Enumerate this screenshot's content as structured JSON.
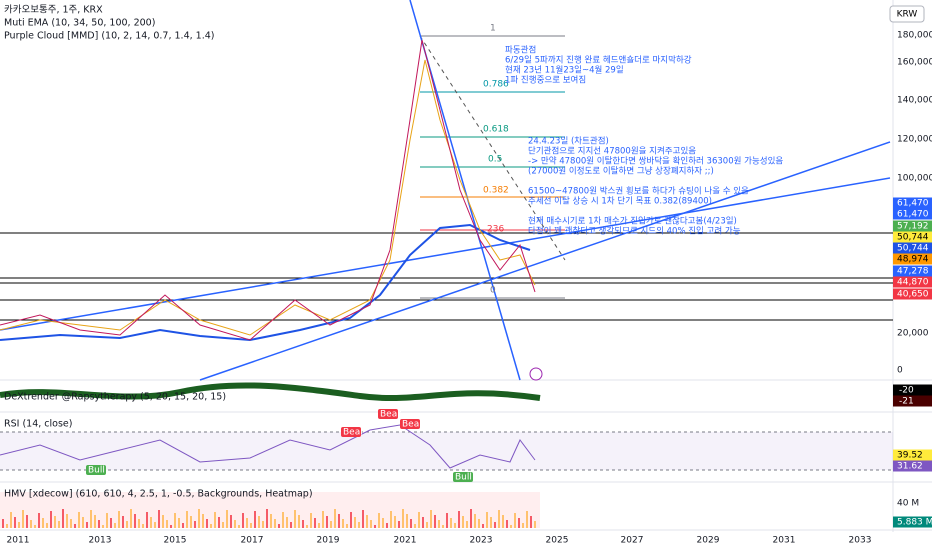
{
  "header": {
    "symbol": "카카오보통주, 1주, KRX",
    "ema": "Muti EMA (10, 34, 50, 100, 200)",
    "cloud": "Purple Cloud [MMD] (10, 2, 14, 0.7, 1.4, 1.4)",
    "currency": "KRW"
  },
  "price_axis": [
    "180,000",
    "160,000",
    "140,000",
    "120,000",
    "100,000",
    "20,000",
    "0"
  ],
  "price_tags": [
    "61,470",
    "61,470",
    "57,192",
    "50,744",
    "50,744",
    "48,974",
    "47,278",
    "44,870",
    "40,650"
  ],
  "time_axis": [
    "2011",
    "2013",
    "2015",
    "2017",
    "2019",
    "2021",
    "2023",
    "2025",
    "2027",
    "2029",
    "2031",
    "2033"
  ],
  "fib_levels": [
    "1",
    "0.786",
    "0.618",
    "0.5",
    "0.382",
    "236",
    "0"
  ],
  "notes1": [
    "파동관점",
    "6/29일 5파까지 진행 완료 헤드앤숄더로 마지막하강",
    "현재 23년 11월23일~4월 29일",
    "1파 진행중으로 보여짐"
  ],
  "notes2": [
    "24.4.23일 (차트관점)",
    "단기관점으로 지지선 47800원을 지켜주고있음",
    "-> 만약 47800원 이탈한다면 쌍바닥을 확인하러 36300원 가능성있음",
    "(27000원 이정도로 이탈하면 그냥 상장폐지하자 ;;)",
    "",
    "61500~47800원 박스권 횡보를 하다가 슈팅이 나올 수 있음",
    "추세선 이탈 상승 시 1차 단기 목표 0.382(89400)",
    "",
    "현재 매수시기로 1차 매수가 진입가로 괜찮다고봄(4/23일)",
    "타점이 꽤 괜찮다고 생각되므로 시드의 40% 진입 고려 가능"
  ],
  "dex": {
    "title": "DeXtrender @Rapsytherapy (5, 20, 15, 20, 15)",
    "tags": [
      "-20",
      "-21"
    ]
  },
  "rsi": {
    "title": "RSI (14, close)",
    "tags": [
      "39.52",
      "31.62"
    ],
    "signals": [
      "Bear",
      "Bear",
      "Bear",
      "Bull",
      "Bull"
    ]
  },
  "hmv": {
    "title": "HMV [xdecow] (610, 610, 4, 2.5, 1, -0.5, Backgrounds, Heatmap)",
    "axis": "40 M",
    "tag": "5.883 M"
  }
}
